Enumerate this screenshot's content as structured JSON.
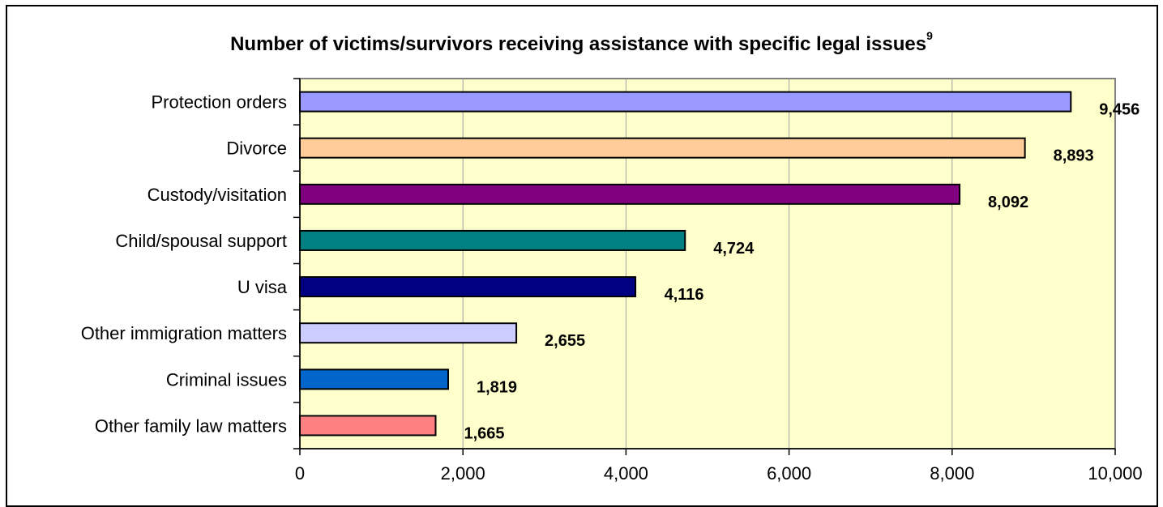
{
  "chart_data": {
    "type": "bar",
    "orientation": "horizontal",
    "title": "Number of victims/survivors receiving assistance with specific legal issues",
    "title_footnote": "9",
    "categories": [
      "Protection orders",
      "Divorce",
      "Custody/visitation",
      "Child/spousal support",
      "U visa",
      "Other immigration matters",
      "Criminal issues",
      "Other family law matters"
    ],
    "values": [
      9456,
      8893,
      8092,
      4724,
      4116,
      2655,
      1819,
      1665
    ],
    "value_labels": [
      "9,456",
      "8,893",
      "8,092",
      "4,724",
      "4,116",
      "2,655",
      "1,819",
      "1,665"
    ],
    "bar_colors": [
      "#9999ff",
      "#ffcc99",
      "#800080",
      "#008080",
      "#000080",
      "#ccccff",
      "#0066cc",
      "#ff8080"
    ],
    "xlim": [
      0,
      10000
    ],
    "xticks": [
      0,
      2000,
      4000,
      6000,
      8000,
      10000
    ],
    "xtick_labels": [
      "0",
      "2,000",
      "4,000",
      "6,000",
      "8,000",
      "10,000"
    ],
    "plot_background": "#ffffcc",
    "grid": true,
    "legend": false
  }
}
